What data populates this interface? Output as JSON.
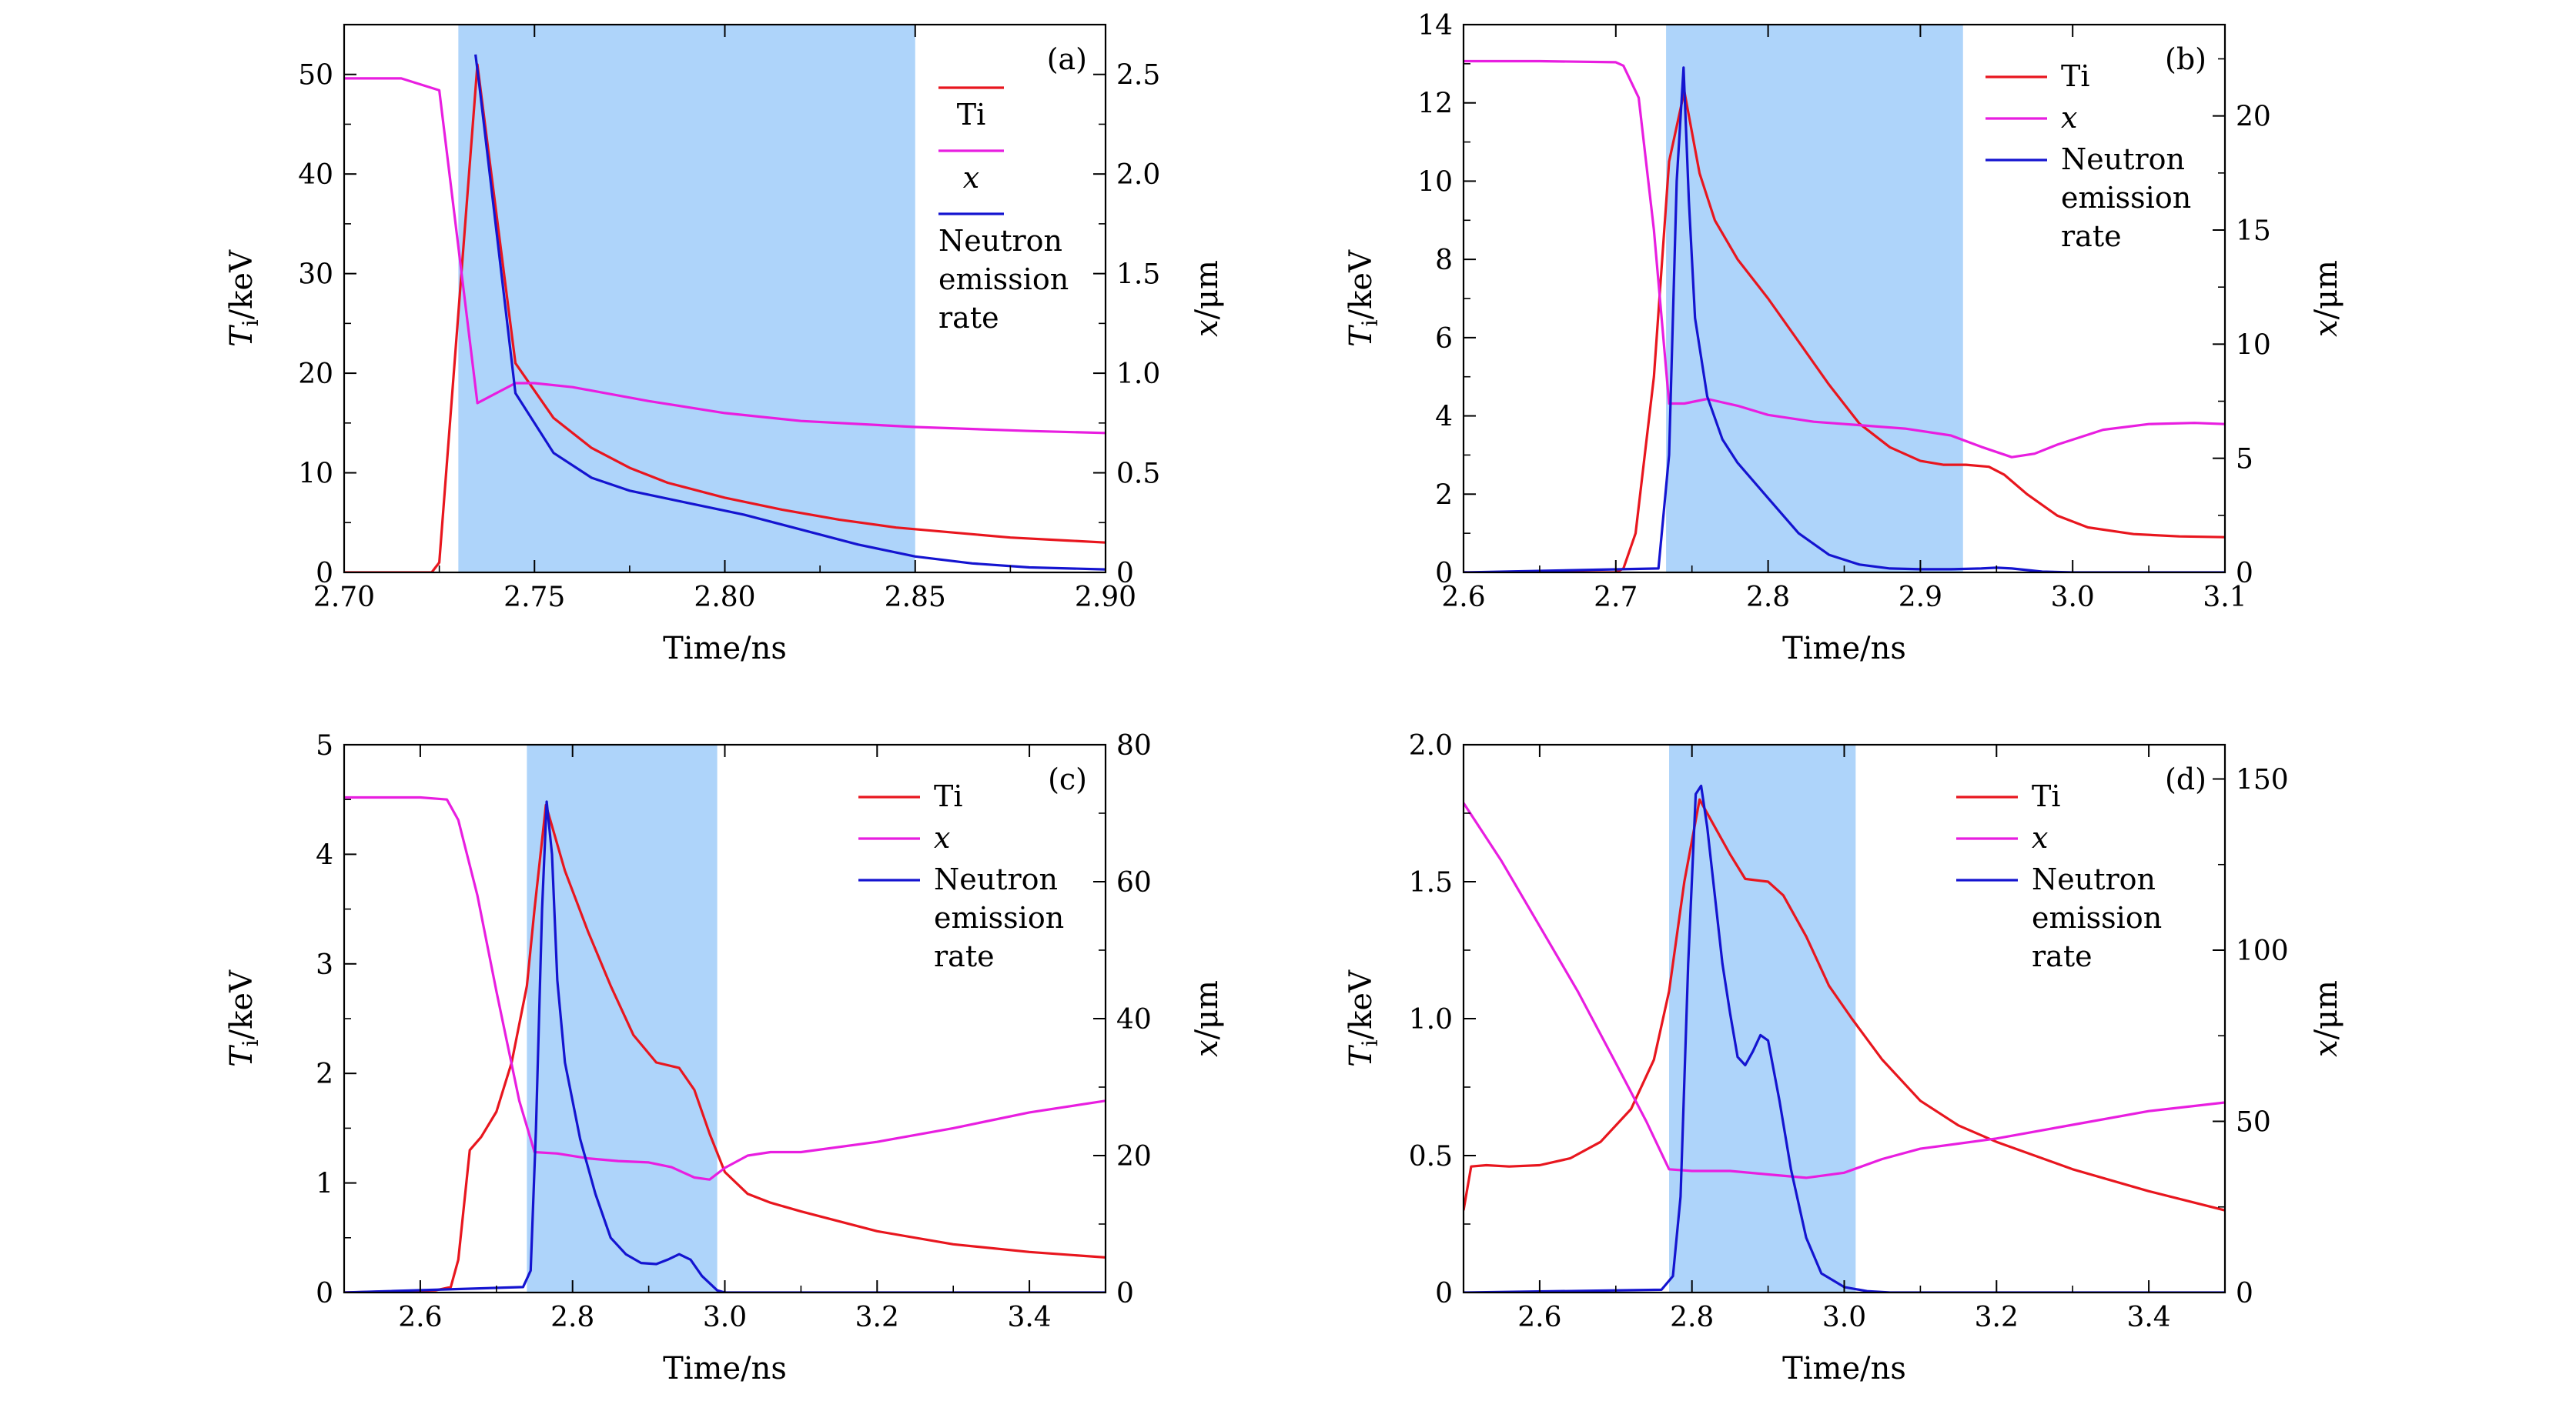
{
  "chart_data": [
    {
      "type": "line",
      "panel_label": "(a)",
      "xlabel": "Time/ns",
      "ylabel_left": {
        "base": "T",
        "sub": "i",
        "unit": "/keV"
      },
      "ylabel_right": {
        "base": "x",
        "unit": "/μm"
      },
      "xlim": [
        2.7,
        2.9
      ],
      "ylim_left": [
        0,
        55
      ],
      "ylim_right": [
        0,
        2.75
      ],
      "xticks": [
        2.7,
        2.75,
        2.8,
        2.85,
        2.9
      ],
      "xtick_labels": [
        "2.70",
        "2.75",
        "2.80",
        "2.85",
        "2.90"
      ],
      "yticks_left": [
        0,
        10,
        20,
        30,
        40,
        50
      ],
      "ytick_labels_left": [
        "0",
        "10",
        "20",
        "30",
        "40",
        "50"
      ],
      "yticks_right": [
        0,
        0.5,
        1.0,
        1.5,
        2.0,
        2.5
      ],
      "ytick_labels_right": [
        "0",
        "0.5",
        "1.0",
        "1.5",
        "2.0",
        "2.5"
      ],
      "shaded_x": [
        2.73,
        2.85
      ],
      "legend_layout": "stacked",
      "legend": [
        "Ti",
        "x",
        "Neutron emission rate"
      ],
      "series": [
        {
          "name": "Ti",
          "axis": "left",
          "color": "#e8161e",
          "x": [
            2.7,
            2.723,
            2.725,
            2.735,
            2.745,
            2.755,
            2.765,
            2.775,
            2.785,
            2.8,
            2.815,
            2.83,
            2.845,
            2.86,
            2.875,
            2.89,
            2.9
          ],
          "y": [
            0,
            0,
            1,
            51,
            21,
            15.5,
            12.5,
            10.5,
            9,
            7.5,
            6.3,
            5.3,
            4.5,
            4,
            3.5,
            3.2,
            3
          ]
        },
        {
          "name": "x",
          "axis": "right",
          "color": "#e81ee0",
          "x": [
            2.7,
            2.715,
            2.725,
            2.735,
            2.745,
            2.75,
            2.76,
            2.78,
            2.8,
            2.82,
            2.85,
            2.88,
            2.9
          ],
          "y": [
            2.48,
            2.48,
            2.42,
            0.85,
            0.95,
            0.95,
            0.93,
            0.86,
            0.8,
            0.76,
            0.73,
            0.71,
            0.7
          ]
        },
        {
          "name": "Neutron emission rate",
          "axis": "left",
          "color": "#1414d0",
          "x": [
            2.7345,
            2.7355,
            2.745,
            2.755,
            2.765,
            2.775,
            2.79,
            2.805,
            2.82,
            2.835,
            2.85,
            2.865,
            2.88,
            2.9
          ],
          "y": [
            52,
            49,
            18,
            12,
            9.5,
            8.2,
            7,
            5.8,
            4.3,
            2.8,
            1.6,
            0.9,
            0.5,
            0.3
          ]
        }
      ]
    },
    {
      "type": "line",
      "panel_label": "(b)",
      "xlabel": "Time/ns",
      "ylabel_left": {
        "base": "T",
        "sub": "i",
        "unit": "/keV"
      },
      "ylabel_right": {
        "base": "x",
        "unit": "/μm"
      },
      "xlim": [
        2.6,
        3.1
      ],
      "ylim_left": [
        0,
        14
      ],
      "ylim_right": [
        0,
        24
      ],
      "xticks": [
        2.6,
        2.7,
        2.8,
        2.9,
        3.0,
        3.1
      ],
      "xtick_labels": [
        "2.6",
        "2.7",
        "2.8",
        "2.9",
        "3.0",
        "3.1"
      ],
      "yticks_left": [
        0,
        2,
        4,
        6,
        8,
        10,
        12,
        14
      ],
      "ytick_labels_left": [
        "0",
        "2",
        "4",
        "6",
        "8",
        "10",
        "12",
        "14"
      ],
      "yticks_right": [
        0,
        5,
        10,
        15,
        20
      ],
      "ytick_labels_right": [
        "0",
        "5",
        "10",
        "15",
        "20"
      ],
      "shaded_x": [
        2.733,
        2.928
      ],
      "legend_layout": "inline",
      "legend": [
        "Ti",
        "x",
        "Neutron emission rate"
      ],
      "series": [
        {
          "name": "Ti",
          "axis": "left",
          "color": "#e8161e",
          "x": [
            2.6,
            2.7,
            2.705,
            2.713,
            2.725,
            2.735,
            2.745,
            2.755,
            2.765,
            2.78,
            2.8,
            2.82,
            2.84,
            2.86,
            2.88,
            2.9,
            2.915,
            2.93,
            2.945,
            2.955,
            2.97,
            2.99,
            3.01,
            3.04,
            3.07,
            3.1
          ],
          "y": [
            0,
            0,
            0.1,
            1,
            5,
            10.5,
            12.3,
            10.2,
            9,
            8,
            7,
            5.9,
            4.8,
            3.8,
            3.2,
            2.85,
            2.75,
            2.75,
            2.7,
            2.5,
            2,
            1.45,
            1.15,
            0.98,
            0.92,
            0.9
          ]
        },
        {
          "name": "x",
          "axis": "right",
          "color": "#e81ee0",
          "x": [
            2.6,
            2.65,
            2.7,
            2.705,
            2.715,
            2.725,
            2.735,
            2.745,
            2.76,
            2.78,
            2.8,
            2.83,
            2.86,
            2.89,
            2.92,
            2.94,
            2.96,
            2.975,
            2.99,
            3.02,
            3.05,
            3.08,
            3.1
          ],
          "y": [
            22.4,
            22.4,
            22.35,
            22.2,
            20.8,
            15,
            7.4,
            7.4,
            7.6,
            7.3,
            6.9,
            6.6,
            6.45,
            6.3,
            6,
            5.5,
            5.05,
            5.2,
            5.6,
            6.25,
            6.5,
            6.55,
            6.5
          ]
        },
        {
          "name": "Neutron emission rate",
          "axis": "left",
          "color": "#1414d0",
          "x": [
            2.6,
            2.728,
            2.735,
            2.74,
            2.7445,
            2.748,
            2.752,
            2.76,
            2.77,
            2.78,
            2.8,
            2.82,
            2.84,
            2.86,
            2.88,
            2.9,
            2.92,
            2.94,
            2.95,
            2.96,
            2.98,
            3.0,
            3.1
          ],
          "y": [
            0,
            0.1,
            3,
            10,
            12.9,
            9.5,
            6.5,
            4.5,
            3.4,
            2.8,
            1.9,
            1.0,
            0.45,
            0.2,
            0.1,
            0.08,
            0.08,
            0.1,
            0.12,
            0.1,
            0.02,
            0,
            0
          ]
        }
      ]
    },
    {
      "type": "line",
      "panel_label": "(c)",
      "xlabel": "Time/ns",
      "ylabel_left": {
        "base": "T",
        "sub": "i",
        "unit": "/keV"
      },
      "ylabel_right": {
        "base": "x",
        "unit": "/μm"
      },
      "xlim": [
        2.5,
        3.5
      ],
      "ylim_left": [
        0,
        5
      ],
      "ylim_right": [
        0,
        80
      ],
      "xticks": [
        2.6,
        2.8,
        3.0,
        3.2,
        3.4
      ],
      "xtick_labels": [
        "2.6",
        "2.8",
        "3.0",
        "3.2",
        "3.4"
      ],
      "yticks_left": [
        0,
        1,
        2,
        3,
        4,
        5
      ],
      "ytick_labels_left": [
        "0",
        "1",
        "2",
        "3",
        "4",
        "5"
      ],
      "yticks_right": [
        0,
        20,
        40,
        60,
        80
      ],
      "ytick_labels_right": [
        "0",
        "20",
        "40",
        "60",
        "80"
      ],
      "shaded_x": [
        2.74,
        2.99
      ],
      "legend_layout": "inline",
      "legend": [
        "Ti",
        "x",
        "Neutron emission rate"
      ],
      "series": [
        {
          "name": "Ti",
          "axis": "left",
          "color": "#e8161e",
          "x": [
            2.5,
            2.62,
            2.64,
            2.65,
            2.665,
            2.68,
            2.7,
            2.72,
            2.74,
            2.75,
            2.765,
            2.79,
            2.82,
            2.85,
            2.88,
            2.91,
            2.94,
            2.96,
            2.98,
            3.0,
            3.03,
            3.06,
            3.1,
            3.2,
            3.3,
            3.4,
            3.5
          ],
          "y": [
            0,
            0.02,
            0.05,
            0.3,
            1.3,
            1.42,
            1.65,
            2.1,
            2.8,
            3.5,
            4.45,
            3.85,
            3.3,
            2.8,
            2.35,
            2.1,
            2.05,
            1.85,
            1.45,
            1.1,
            0.9,
            0.82,
            0.74,
            0.56,
            0.44,
            0.37,
            0.32
          ]
        },
        {
          "name": "x",
          "axis": "right",
          "color": "#e81ee0",
          "x": [
            2.5,
            2.6,
            2.635,
            2.65,
            2.675,
            2.7,
            2.73,
            2.75,
            2.78,
            2.82,
            2.86,
            2.9,
            2.93,
            2.96,
            2.98,
            3.0,
            3.03,
            3.06,
            3.1,
            3.2,
            3.3,
            3.4,
            3.5
          ],
          "y": [
            72.3,
            72.3,
            72,
            69,
            58,
            44,
            28,
            20.5,
            20.3,
            19.6,
            19.2,
            19,
            18.3,
            16.8,
            16.5,
            18.2,
            20,
            20.5,
            20.5,
            22,
            24,
            26.3,
            28
          ]
        },
        {
          "name": "Neutron emission rate",
          "axis": "left",
          "color": "#1414d0",
          "x": [
            2.5,
            2.735,
            2.745,
            2.752,
            2.76,
            2.766,
            2.773,
            2.78,
            2.79,
            2.81,
            2.83,
            2.85,
            2.87,
            2.89,
            2.91,
            2.925,
            2.94,
            2.955,
            2.97,
            2.99,
            3.0,
            3.1,
            3.5
          ],
          "y": [
            0,
            0.05,
            0.2,
            1.5,
            3.5,
            4.48,
            4,
            2.85,
            2.1,
            1.4,
            0.9,
            0.5,
            0.35,
            0.27,
            0.26,
            0.3,
            0.35,
            0.3,
            0.15,
            0.02,
            0,
            0,
            0
          ]
        }
      ]
    },
    {
      "type": "line",
      "panel_label": "(d)",
      "xlabel": "Time/ns",
      "ylabel_left": {
        "base": "T",
        "sub": "i",
        "unit": "/keV"
      },
      "ylabel_right": {
        "base": "x",
        "unit": "/μm"
      },
      "xlim": [
        2.5,
        3.5
      ],
      "ylim_left": [
        0,
        2.0
      ],
      "ylim_right": [
        0,
        160
      ],
      "xticks": [
        2.6,
        2.8,
        3.0,
        3.2,
        3.4
      ],
      "xtick_labels": [
        "2.6",
        "2.8",
        "3.0",
        "3.2",
        "3.4"
      ],
      "yticks_left": [
        0,
        0.5,
        1.0,
        1.5,
        2.0
      ],
      "ytick_labels_left": [
        "0",
        "0.5",
        "1.0",
        "1.5",
        "2.0"
      ],
      "yticks_right": [
        0,
        50,
        100,
        150
      ],
      "ytick_labels_right": [
        "0",
        "50",
        "100",
        "150"
      ],
      "shaded_x": [
        2.77,
        3.015
      ],
      "legend_layout": "inline",
      "legend": [
        "Ti",
        "x",
        "Neutron emission rate"
      ],
      "series": [
        {
          "name": "Ti",
          "axis": "left",
          "color": "#e8161e",
          "x": [
            2.5,
            2.51,
            2.53,
            2.56,
            2.6,
            2.64,
            2.68,
            2.72,
            2.75,
            2.77,
            2.79,
            2.81,
            2.83,
            2.85,
            2.87,
            2.9,
            2.92,
            2.95,
            2.98,
            3.01,
            3.05,
            3.1,
            3.15,
            3.2,
            3.3,
            3.4,
            3.5
          ],
          "y": [
            0.3,
            0.46,
            0.465,
            0.46,
            0.465,
            0.49,
            0.55,
            0.67,
            0.85,
            1.1,
            1.5,
            1.8,
            1.7,
            1.6,
            1.51,
            1.5,
            1.45,
            1.3,
            1.12,
            1.0,
            0.85,
            0.7,
            0.61,
            0.55,
            0.45,
            0.37,
            0.3
          ]
        },
        {
          "name": "x",
          "axis": "right",
          "color": "#e81ee0",
          "x": [
            2.5,
            2.55,
            2.6,
            2.65,
            2.7,
            2.74,
            2.77,
            2.8,
            2.85,
            2.9,
            2.95,
            3.0,
            3.05,
            3.1,
            3.2,
            3.3,
            3.4,
            3.5
          ],
          "y": [
            143,
            126,
            107,
            88,
            67,
            50,
            36,
            35.5,
            35.5,
            34.5,
            33.5,
            35,
            39,
            42,
            45,
            49,
            53,
            55.5
          ]
        },
        {
          "name": "Neutron emission rate",
          "axis": "left",
          "color": "#1414d0",
          "x": [
            2.5,
            2.76,
            2.775,
            2.785,
            2.795,
            2.805,
            2.812,
            2.82,
            2.83,
            2.84,
            2.85,
            2.86,
            2.87,
            2.88,
            2.89,
            2.9,
            2.915,
            2.93,
            2.95,
            2.97,
            3.0,
            3.03,
            3.06,
            3.1,
            3.5
          ],
          "y": [
            0,
            0.01,
            0.06,
            0.35,
            1.2,
            1.82,
            1.85,
            1.7,
            1.45,
            1.2,
            1.02,
            0.86,
            0.83,
            0.88,
            0.94,
            0.92,
            0.7,
            0.45,
            0.2,
            0.07,
            0.02,
            0.005,
            0,
            0,
            0
          ]
        }
      ]
    }
  ]
}
